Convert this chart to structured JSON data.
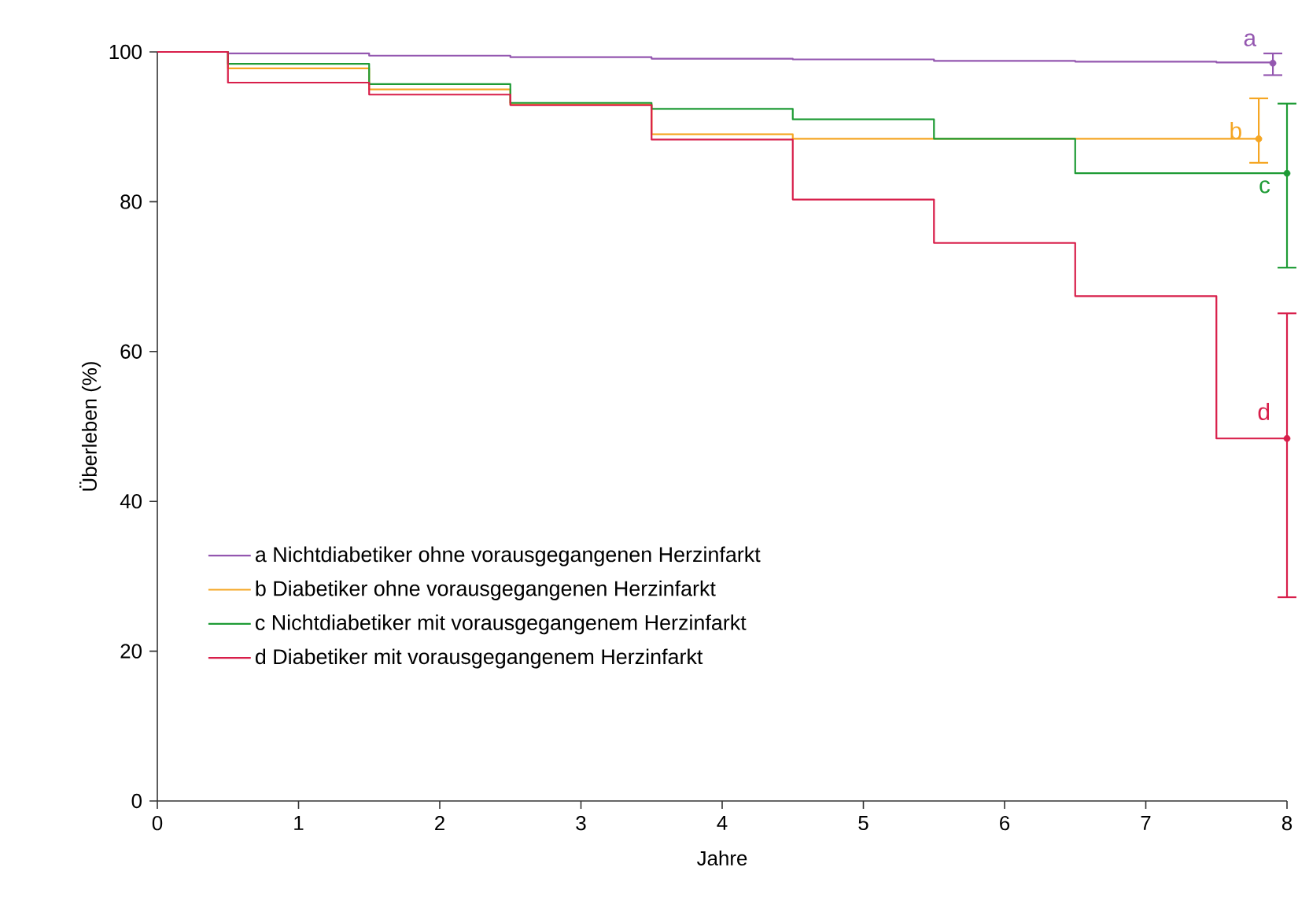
{
  "chart_data": {
    "type": "step",
    "xlabel": "Jahre",
    "ylabel": "Überleben (%)",
    "xlim": [
      0,
      8
    ],
    "ylim": [
      0,
      100
    ],
    "xticks": [
      0,
      1,
      2,
      3,
      4,
      5,
      6,
      7,
      8
    ],
    "yticks": [
      0,
      20,
      40,
      60,
      80,
      100
    ],
    "grid": false,
    "legend": "bottom left",
    "marker": "none",
    "line_style": "solid",
    "series": [
      {
        "name": "a Nichtdiabetiker ohne vorausgegangenen Herzinfarkt",
        "color": "#9457b0",
        "x": [
          0,
          0.5,
          1.5,
          2.5,
          3.5,
          4.5,
          5.5,
          6.5,
          7.5,
          7.9
        ],
        "values": [
          100,
          99.8,
          99.5,
          99.3,
          99.1,
          99.0,
          98.8,
          98.7,
          98.6,
          98.5
        ],
        "errors": [
          null,
          null,
          null,
          null,
          null,
          null,
          null,
          null,
          null,
          [
            96.9,
            99.8
          ]
        ]
      },
      {
        "name": "b Diabetiker ohne vorausgegangenen Herzinfarkt",
        "color": "#f5a623",
        "x": [
          0,
          0.5,
          1.5,
          2.5,
          3.5,
          4.5,
          7.8
        ],
        "values": [
          100,
          97.8,
          95.0,
          93.0,
          89.0,
          88.4,
          88.4
        ],
        "errors": [
          null,
          null,
          null,
          null,
          null,
          null,
          [
            85.2,
            93.8
          ]
        ]
      },
      {
        "name": "c Nichtdiabetiker mit vorausgegangenem Herzinfarkt",
        "color": "#1e9b35",
        "x": [
          0,
          0.5,
          1.5,
          2.5,
          3.5,
          4.5,
          5.5,
          6.5,
          8
        ],
        "values": [
          100,
          98.4,
          95.7,
          93.2,
          92.4,
          91.0,
          88.4,
          83.8,
          83.8
        ],
        "errors": [
          null,
          null,
          null,
          null,
          null,
          null,
          null,
          null,
          [
            71.2,
            93.1
          ]
        ]
      },
      {
        "name": "d Diabetiker mit vorausgegangenem Herzinfarkt",
        "color": "#d81e4a",
        "x": [
          0,
          0.5,
          1.5,
          2.5,
          3.5,
          4.5,
          5.5,
          6.5,
          7.5,
          8
        ],
        "values": [
          100,
          95.9,
          94.3,
          92.9,
          88.3,
          80.3,
          74.5,
          67.4,
          48.4,
          48.4
        ],
        "errors": [
          null,
          null,
          null,
          null,
          null,
          null,
          null,
          null,
          null,
          [
            27.2,
            65.1
          ]
        ]
      }
    ],
    "annotations": [
      {
        "text": "a",
        "x": 7.9,
        "y": 99.8
      },
      {
        "text": "b",
        "x": 7.8,
        "y": 89.5
      },
      {
        "text": "c",
        "x": 8,
        "y": 82
      },
      {
        "text": "d",
        "x": 8,
        "y": 52
      }
    ]
  }
}
